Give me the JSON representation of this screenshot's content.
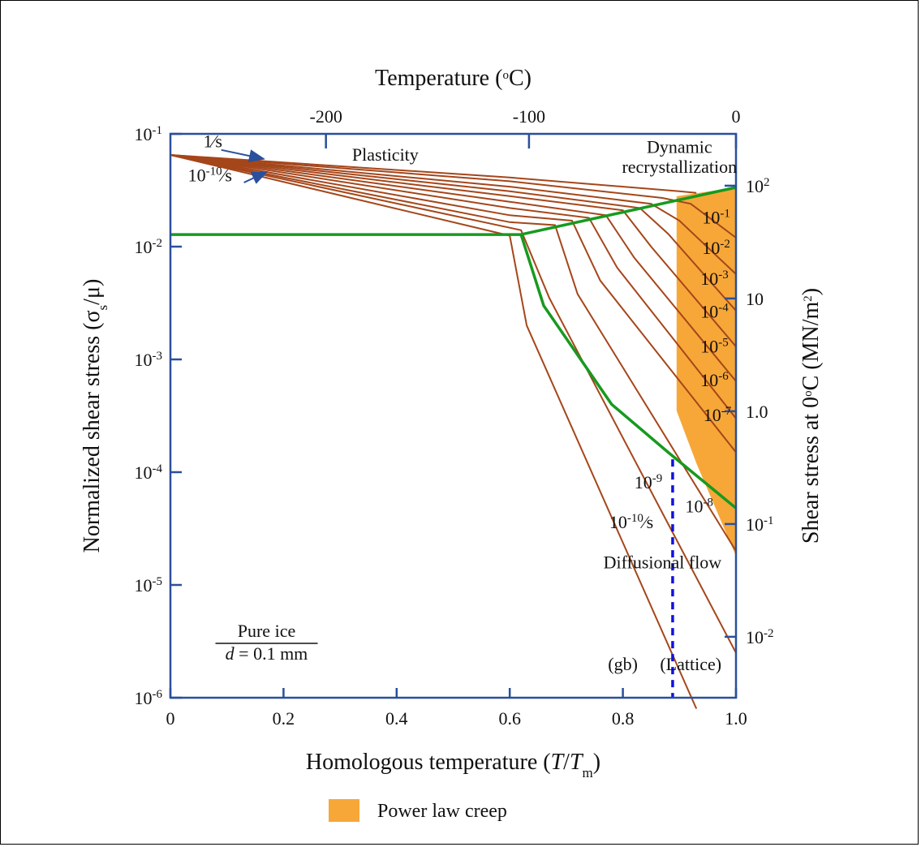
{
  "chart_data": {
    "type": "line",
    "title": "",
    "xlabel": {
      "pre": "Homologous temperature (",
      "italic": "T",
      "mid": "/",
      "italic2": "T",
      "sub": "m",
      "post": ")"
    },
    "ylabel": {
      "pre": "Normalized shear stress (σ",
      "sub": "s",
      "post": "/μ)"
    },
    "top_xlabel": {
      "pre": "Temperature (",
      "sup": "o",
      "post": "C)"
    },
    "right_ylabel": {
      "pre": "Shear stress at 0",
      "sup": "o",
      "mid": "C (MN/m",
      "sup2": "2",
      "post": ")"
    },
    "xlim": [
      0,
      1.0
    ],
    "ylim": [
      1e-06,
      0.1
    ],
    "yscale": "log",
    "x_ticks": [
      {
        "v": 0,
        "label": "0"
      },
      {
        "v": 0.2,
        "label": "0.2"
      },
      {
        "v": 0.4,
        "label": "0.4"
      },
      {
        "v": 0.6,
        "label": "0.6"
      },
      {
        "v": 0.8,
        "label": "0.8"
      },
      {
        "v": 1.0,
        "label": "1.0"
      }
    ],
    "y_ticks": [
      {
        "exp": -6,
        "base": "10",
        "sup": "-6"
      },
      {
        "exp": -5,
        "base": "10",
        "sup": "-5"
      },
      {
        "exp": -4,
        "base": "10",
        "sup": "-4"
      },
      {
        "exp": -3,
        "base": "10",
        "sup": "-3"
      },
      {
        "exp": -2,
        "base": "10",
        "sup": "-2"
      },
      {
        "exp": -1,
        "base": "10",
        "sup": "-1"
      }
    ],
    "top_ticks": [
      {
        "x": 0.275,
        "label": "-200"
      },
      {
        "x": 0.634,
        "label": "-100"
      },
      {
        "x": 1.0,
        "label": "0"
      }
    ],
    "right_ticks": [
      {
        "y": 0.0347,
        "base": "10",
        "sup": "2"
      },
      {
        "y": 0.00347,
        "base": "10",
        "sup": ""
      },
      {
        "y": 0.000347,
        "base": "1.0",
        "sup": ""
      },
      {
        "y": 3.47e-05,
        "base": "10",
        "sup": "-1"
      },
      {
        "y": 3.47e-06,
        "base": "10",
        "sup": "-2"
      }
    ],
    "regions": [
      {
        "name": "Plasticity",
        "x": 0.38,
        "y": 0.058
      },
      {
        "name": "Dynamic",
        "x": 0.9,
        "y": 0.068
      },
      {
        "name": "recrystallization",
        "x": 0.9,
        "y": 0.045
      },
      {
        "name": "Diffusional flow",
        "x": 0.87,
        "y": 1.4e-05
      },
      {
        "name": "(gb)",
        "x": 0.8,
        "y": 1.75e-06
      },
      {
        "name": "(Lattice)",
        "x": 0.92,
        "y": 1.75e-06
      }
    ],
    "rate_labels": [
      {
        "base": "1",
        "frac": "⁄s",
        "x": 0.075,
        "y": 0.076,
        "sup": ""
      },
      {
        "base": "10",
        "sup": "-10",
        "frac": "⁄s",
        "x": 0.07,
        "y": 0.038
      },
      {
        "base": "10",
        "sup": "-1",
        "frac": "",
        "x": 0.965,
        "y": 0.016
      },
      {
        "base": "10",
        "sup": "-2",
        "frac": "",
        "x": 0.965,
        "y": 0.0086
      },
      {
        "base": "10",
        "sup": "-3",
        "frac": "",
        "x": 0.962,
        "y": 0.0046
      },
      {
        "base": "10",
        "sup": "-4",
        "frac": "",
        "x": 0.962,
        "y": 0.00235
      },
      {
        "base": "10",
        "sup": "-5",
        "frac": "",
        "x": 0.962,
        "y": 0.00115
      },
      {
        "base": "10",
        "sup": "-6",
        "frac": "",
        "x": 0.962,
        "y": 0.00058
      },
      {
        "base": "10",
        "sup": "-7",
        "frac": "",
        "x": 0.967,
        "y": 0.000285
      },
      {
        "base": "10",
        "sup": "-8",
        "frac": "",
        "x": 0.935,
        "y": 4.4e-05
      },
      {
        "base": "10",
        "sup": "-9",
        "frac": "",
        "x": 0.845,
        "y": 7.2e-05
      },
      {
        "base": "10",
        "sup": "-10",
        "frac": "⁄s",
        "x": 0.815,
        "y": 3.2e-05
      }
    ],
    "box_label": {
      "line1": "Pure ice",
      "var": "d",
      "line2": " = 0.1 mm",
      "x": 0.17
    },
    "legend": [
      {
        "name": "Power law creep",
        "color": "#F7A738"
      }
    ],
    "colors": {
      "rate_curves": "#A5461A",
      "boundary": "#179A1F",
      "creep_fill": "#F7A738",
      "axis": "#2A4F9C",
      "diffusion_divider": "#1010E0",
      "arrows": "#2A4F9C"
    },
    "series": [
      {
        "rate": "1/s",
        "points": [
          [
            0,
            0.065
          ],
          [
            0.6,
            0.041
          ],
          [
            0.9,
            0.031
          ],
          [
            0.93,
            0.03
          ]
        ]
      },
      {
        "rate": "1e-1/s",
        "points": [
          [
            0,
            0.065
          ],
          [
            0.6,
            0.038
          ],
          [
            0.87,
            0.027
          ],
          [
            0.92,
            0.024
          ],
          [
            1.0,
            0.012
          ]
        ]
      },
      {
        "rate": "1e-2/s",
        "points": [
          [
            0,
            0.065
          ],
          [
            0.6,
            0.034
          ],
          [
            0.85,
            0.024
          ],
          [
            0.9,
            0.017
          ],
          [
            1.0,
            0.0057
          ]
        ]
      },
      {
        "rate": "1e-3/s",
        "points": [
          [
            0,
            0.065
          ],
          [
            0.6,
            0.031
          ],
          [
            0.83,
            0.022
          ],
          [
            0.88,
            0.013
          ],
          [
            1.0,
            0.0027
          ]
        ]
      },
      {
        "rate": "1e-4/s",
        "points": [
          [
            0,
            0.065
          ],
          [
            0.6,
            0.028
          ],
          [
            0.8,
            0.021
          ],
          [
            0.85,
            0.01
          ],
          [
            1.0,
            0.0013
          ]
        ]
      },
      {
        "rate": "1e-5/s",
        "points": [
          [
            0,
            0.065
          ],
          [
            0.6,
            0.025
          ],
          [
            0.77,
            0.019
          ],
          [
            0.82,
            0.008
          ],
          [
            1.0,
            0.00064
          ]
        ]
      },
      {
        "rate": "1e-6/s",
        "points": [
          [
            0,
            0.065
          ],
          [
            0.6,
            0.022
          ],
          [
            0.74,
            0.018
          ],
          [
            0.79,
            0.0065
          ],
          [
            1.0,
            0.0003
          ]
        ]
      },
      {
        "rate": "1e-7/s",
        "points": [
          [
            0,
            0.065
          ],
          [
            0.6,
            0.019
          ],
          [
            0.71,
            0.017
          ],
          [
            0.76,
            0.005
          ],
          [
            1.0,
            0.00015
          ]
        ]
      },
      {
        "rate": "1e-8/s",
        "points": [
          [
            0,
            0.065
          ],
          [
            0.6,
            0.0165
          ],
          [
            0.68,
            0.0155
          ],
          [
            0.72,
            0.0038
          ],
          [
            1.0,
            2e-05
          ]
        ]
      },
      {
        "rate": "1e-9/s",
        "points": [
          [
            0,
            0.065
          ],
          [
            0.62,
            0.014
          ],
          [
            0.67,
            0.0035
          ],
          [
            1.0,
            2.5e-06
          ]
        ]
      },
      {
        "rate": "1e-10/s",
        "points": [
          [
            0,
            0.065
          ],
          [
            0.6,
            0.0125
          ],
          [
            0.63,
            0.002
          ],
          [
            0.93,
            8e-07
          ]
        ]
      }
    ],
    "boundary": {
      "points": [
        [
          0,
          0.0128
        ],
        [
          0.62,
          0.0128
        ],
        [
          0.66,
          0.003
        ],
        [
          0.78,
          0.0004
        ],
        [
          0.88,
          0.00015
        ],
        [
          1.0,
          4.8e-05
        ]
      ],
      "upper": [
        [
          0.62,
          0.0128
        ],
        [
          1.0,
          0.0335
        ]
      ]
    }
  }
}
